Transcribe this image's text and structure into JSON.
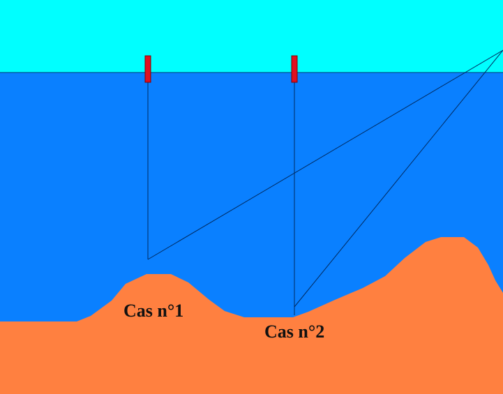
{
  "labels": [
    "Cas n°1",
    "Cas n°2"
  ]
}
